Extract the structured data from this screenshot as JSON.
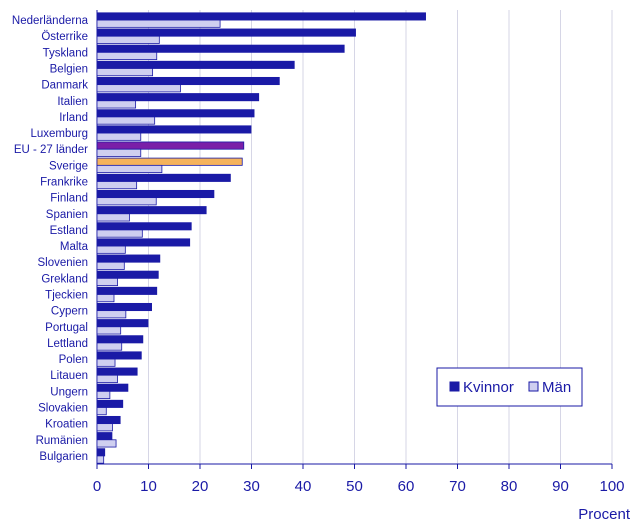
{
  "chart_data": {
    "type": "bar",
    "orientation": "horizontal",
    "categories": [
      "Nederländerna",
      "Österrike",
      "Tyskland",
      "Belgien",
      "Danmark",
      "Italien",
      "Irland",
      "Luxemburg",
      "EU - 27 länder",
      "Sverige",
      "Frankrike",
      "Finland",
      "Spanien",
      "Estland",
      "Malta",
      "Slovenien",
      "Grekland",
      "Tjeckien",
      "Cypern",
      "Portugal",
      "Lettland",
      "Polen",
      "Litauen",
      "Ungern",
      "Slovakien",
      "Kroatien",
      "Rumänien",
      "Bulgarien"
    ],
    "series": [
      {
        "name": "Kvinnor",
        "color": "#1a1aa6",
        "values": [
          63.8,
          50.2,
          48.0,
          38.3,
          35.4,
          31.4,
          30.5,
          29.9,
          28.5,
          28.2,
          25.9,
          22.7,
          21.2,
          18.3,
          18.0,
          12.2,
          11.9,
          11.6,
          10.6,
          9.9,
          8.9,
          8.6,
          7.8,
          6.0,
          5.0,
          4.5,
          2.9,
          1.5
        ]
      },
      {
        "name": "Män",
        "color": "#cfcff0",
        "values": [
          23.9,
          12.1,
          11.6,
          10.8,
          16.2,
          7.5,
          11.2,
          8.5,
          8.5,
          12.6,
          7.7,
          11.5,
          6.3,
          8.8,
          5.5,
          5.3,
          4.0,
          3.3,
          5.6,
          4.6,
          4.8,
          3.5,
          4.0,
          2.5,
          1.8,
          3.0,
          3.7,
          1.3
        ]
      }
    ],
    "highlight": {
      "EU - 27 länder": "#7a1fa8",
      "Sverige": "#f5b35c"
    },
    "xlabel": "Procent",
    "xlim": [
      0,
      100
    ],
    "xticks": [
      "0",
      "10",
      "20",
      "30",
      "40",
      "50",
      "60",
      "70",
      "80",
      "90",
      "100"
    ],
    "grid": true,
    "legend_position": "right"
  }
}
